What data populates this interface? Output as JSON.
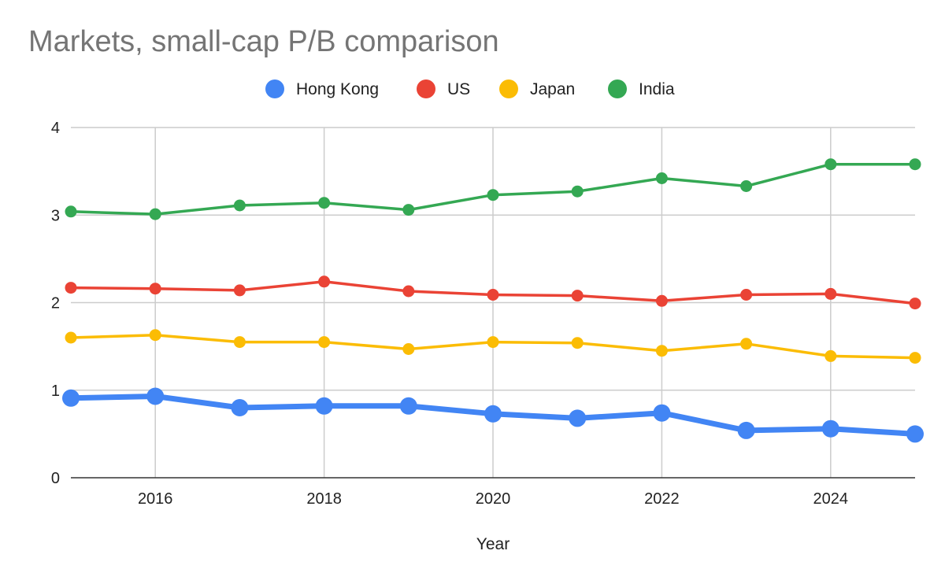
{
  "chart_data": {
    "type": "line",
    "title": "Markets, small-cap P/B comparison",
    "xlabel": "Year",
    "ylabel": "",
    "xlim": [
      2015,
      2025
    ],
    "ylim": [
      0,
      4
    ],
    "x_ticks": [
      2016,
      2018,
      2020,
      2022,
      2024
    ],
    "y_ticks": [
      0,
      1,
      2,
      3,
      4
    ],
    "grid": true,
    "legend_position": "top-center",
    "x": [
      2015,
      2016,
      2017,
      2018,
      2019,
      2020,
      2021,
      2022,
      2023,
      2024,
      2025
    ],
    "series": [
      {
        "name": "Hong Kong",
        "color": "#4285F4",
        "values": [
          0.91,
          0.93,
          0.8,
          0.82,
          0.82,
          0.73,
          0.68,
          0.74,
          0.54,
          0.56,
          0.5
        ]
      },
      {
        "name": "US",
        "color": "#EA4335",
        "values": [
          2.17,
          2.16,
          2.14,
          2.24,
          2.13,
          2.09,
          2.08,
          2.02,
          2.09,
          2.1,
          1.99
        ]
      },
      {
        "name": "Japan",
        "color": "#FBBC04",
        "values": [
          1.6,
          1.63,
          1.55,
          1.55,
          1.47,
          1.55,
          1.54,
          1.45,
          1.53,
          1.39,
          1.37
        ]
      },
      {
        "name": "India",
        "color": "#34A853",
        "values": [
          3.04,
          3.01,
          3.11,
          3.14,
          3.06,
          3.23,
          3.27,
          3.42,
          3.33,
          3.58,
          3.58
        ]
      }
    ]
  }
}
